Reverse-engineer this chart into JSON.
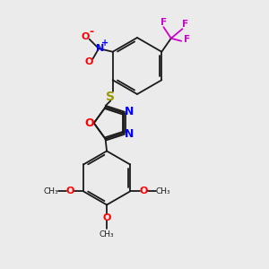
{
  "bg_color": "#ebebeb",
  "bond_color": "#1a1a1a",
  "N_color": "#0000ff",
  "O_color": "#ff0000",
  "S_color": "#999900",
  "F_color": "#cc00cc",
  "lw": 1.3,
  "xlim": [
    0,
    10
  ],
  "ylim": [
    0,
    10
  ]
}
